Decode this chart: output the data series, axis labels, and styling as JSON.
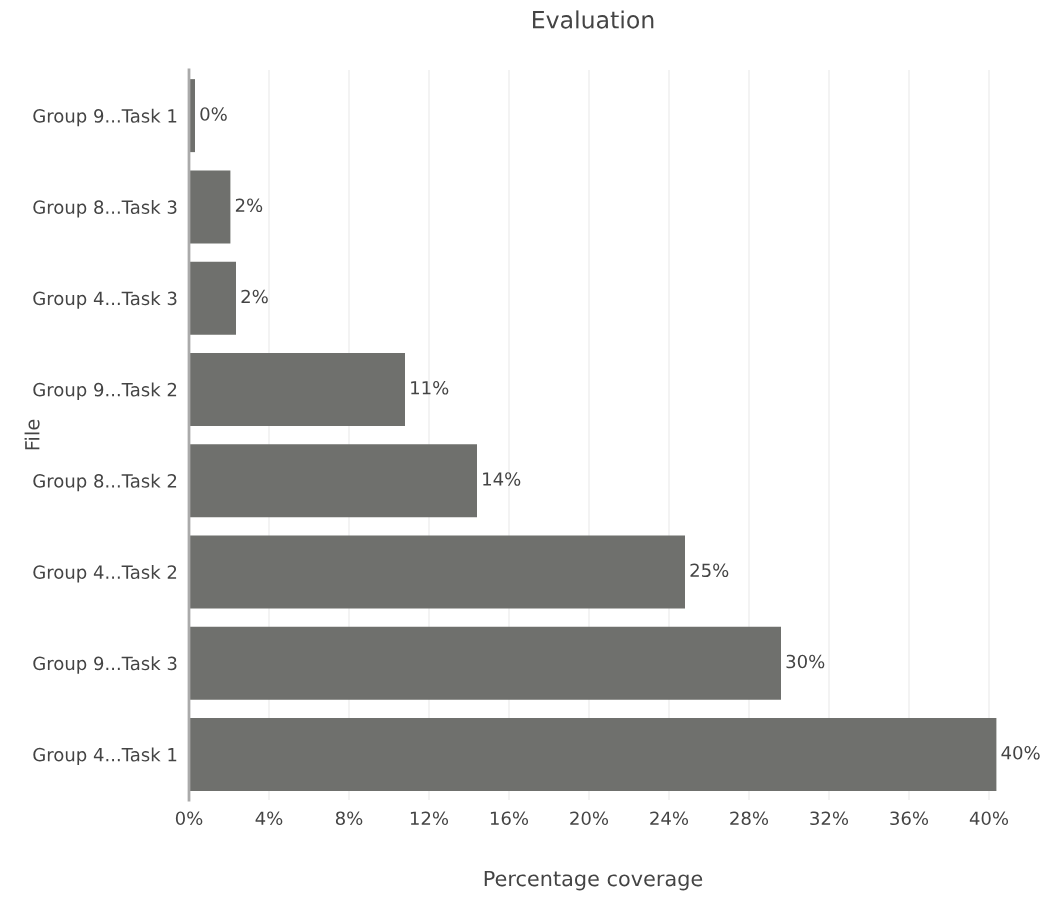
{
  "chart_data": {
    "type": "bar",
    "orientation": "horizontal",
    "title": "Evaluation",
    "xlabel": "Percentage coverage",
    "ylabel": "File",
    "categories": [
      "Group 9...Task 1",
      "Group 8...Task 3",
      "Group 4...Task 3",
      "Group 9...Task 2",
      "Group 8...Task 2",
      "Group 4...Task 2",
      "Group 9...Task 3",
      "Group 4...Task 1"
    ],
    "values": [
      0.3,
      2.07,
      2.35,
      10.8,
      14.4,
      24.8,
      29.6,
      40.37
    ],
    "value_labels": [
      "0%",
      "2%",
      "2%",
      "11%",
      "14%",
      "25%",
      "30%",
      "40%"
    ],
    "color": "#6f706d",
    "xlim": [
      0,
      40.4
    ],
    "xticks": [
      {
        "value": 0,
        "label": "0%"
      },
      {
        "value": 4,
        "label": "4%"
      },
      {
        "value": 8,
        "label": "8%"
      },
      {
        "value": 12,
        "label": "12%"
      },
      {
        "value": 16,
        "label": "16%"
      },
      {
        "value": 20,
        "label": "20%"
      },
      {
        "value": 24,
        "label": "24%"
      },
      {
        "value": 28,
        "label": "28%"
      },
      {
        "value": 32,
        "label": "32%"
      },
      {
        "value": 36,
        "label": "36%"
      },
      {
        "value": 40,
        "label": "40%"
      }
    ],
    "grid": "x",
    "legend": false
  }
}
